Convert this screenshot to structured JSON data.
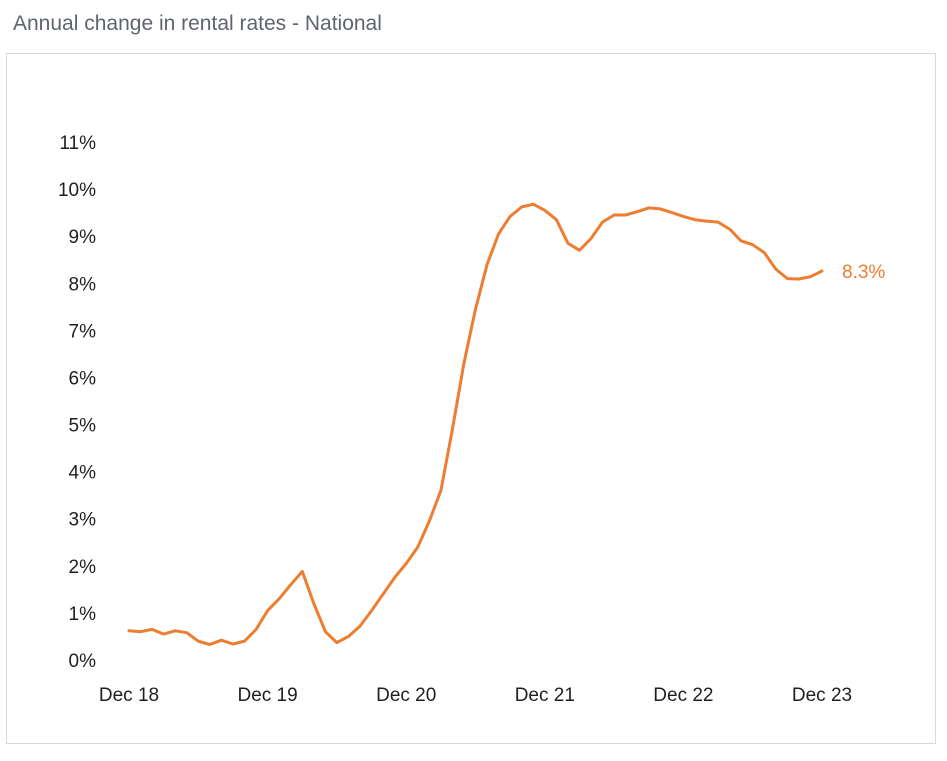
{
  "title": "Annual change in rental rates - National",
  "colors": {
    "line": "#ED7D31",
    "text": "#1f1f1f",
    "title": "#5f6470",
    "border": "#d9d9d9"
  },
  "chart_data": {
    "type": "line",
    "title": "Annual change in rental rates - National",
    "xlabel": "",
    "ylabel": "",
    "y_ticks": [
      "0%",
      "1%",
      "2%",
      "3%",
      "4%",
      "5%",
      "6%",
      "7%",
      "8%",
      "9%",
      "10%",
      "11%"
    ],
    "x_ticks": [
      "Dec 18",
      "Dec 19",
      "Dec 20",
      "Dec 21",
      "Dec 22",
      "Dec 23"
    ],
    "ylim": [
      0,
      11
    ],
    "grid": false,
    "end_label": "8.3%",
    "series": [
      {
        "color": "#ED7D31",
        "x": [
          "2018-12",
          "2019-01",
          "2019-02",
          "2019-03",
          "2019-04",
          "2019-05",
          "2019-06",
          "2019-07",
          "2019-08",
          "2019-09",
          "2019-10",
          "2019-11",
          "2019-12",
          "2020-01",
          "2020-02",
          "2020-03",
          "2020-04",
          "2020-05",
          "2020-06",
          "2020-07",
          "2020-08",
          "2020-09",
          "2020-10",
          "2020-11",
          "2020-12",
          "2021-01",
          "2021-02",
          "2021-03",
          "2021-04",
          "2021-05",
          "2021-06",
          "2021-07",
          "2021-08",
          "2021-09",
          "2021-10",
          "2021-11",
          "2021-12",
          "2022-01",
          "2022-02",
          "2022-03",
          "2022-04",
          "2022-05",
          "2022-06",
          "2022-07",
          "2022-08",
          "2022-09",
          "2022-10",
          "2022-11",
          "2022-12",
          "2023-01",
          "2023-02",
          "2023-03",
          "2023-04",
          "2023-05",
          "2023-06",
          "2023-07",
          "2023-08",
          "2023-09",
          "2023-10",
          "2023-11",
          "2023-12"
        ],
        "values": [
          0.62,
          0.6,
          0.65,
          0.55,
          0.62,
          0.58,
          0.4,
          0.33,
          0.42,
          0.34,
          0.4,
          0.65,
          1.05,
          1.3,
          1.6,
          1.88,
          1.2,
          0.6,
          0.37,
          0.5,
          0.72,
          1.05,
          1.4,
          1.75,
          2.05,
          2.4,
          2.95,
          3.6,
          4.9,
          6.3,
          7.45,
          8.4,
          9.05,
          9.42,
          9.62,
          9.68,
          9.55,
          9.35,
          8.85,
          8.7,
          8.95,
          9.3,
          9.45,
          9.45,
          9.52,
          9.6,
          9.58,
          9.5,
          9.42,
          9.35,
          9.32,
          9.3,
          9.15,
          8.9,
          8.82,
          8.65,
          8.3,
          8.1,
          8.09,
          8.14,
          8.26
        ]
      }
    ]
  }
}
